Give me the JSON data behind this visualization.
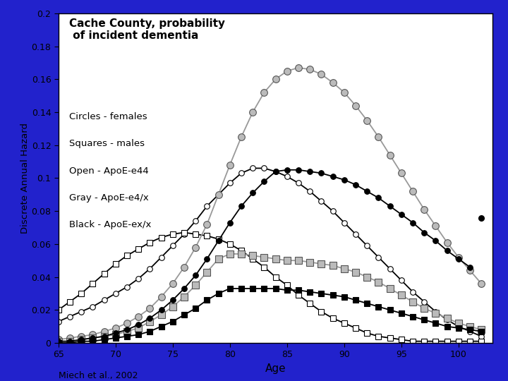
{
  "title_line1": "Cache County, probability",
  "title_line2": " of incident dementia",
  "legend_lines": [
    "Circles - females",
    "Squares - males",
    "Open - ApoE-e44",
    "Gray - ApoE-e4/x",
    "Black - ApoE-ex/x"
  ],
  "xlabel": "Age",
  "ylabel": "Discrete Annual Hazard",
  "citation": "Miech et al., 2002",
  "xlim": [
    65,
    103
  ],
  "ylim": [
    0.0,
    0.2
  ],
  "yticks": [
    0.0,
    0.02,
    0.04,
    0.06,
    0.08,
    0.1,
    0.12,
    0.14,
    0.16,
    0.18,
    0.2
  ],
  "xticks": [
    65,
    70,
    75,
    80,
    85,
    90,
    95,
    100
  ],
  "background_color": "#ffffff",
  "border_color": "#2222cc",
  "age_start": 65,
  "age_end": 103,
  "gray_color": "#999999",
  "light_gray_fill": "#bbbbbb",
  "open_circle_female": [
    0.013,
    0.016,
    0.019,
    0.022,
    0.026,
    0.03,
    0.034,
    0.039,
    0.045,
    0.052,
    0.059,
    0.066,
    0.074,
    0.083,
    0.09,
    0.097,
    0.103,
    0.106,
    0.106,
    0.104,
    0.101,
    0.097,
    0.092,
    0.086,
    0.08,
    0.073,
    0.066,
    0.059,
    0.052,
    0.045,
    0.038,
    0.031,
    0.025,
    0.019,
    0.014,
    0.01,
    0.007,
    0.004
  ],
  "open_square_male": [
    0.02,
    0.025,
    0.03,
    0.036,
    0.042,
    0.048,
    0.053,
    0.057,
    0.061,
    0.064,
    0.066,
    0.067,
    0.066,
    0.065,
    0.063,
    0.06,
    0.056,
    0.051,
    0.046,
    0.04,
    0.035,
    0.029,
    0.024,
    0.019,
    0.015,
    0.012,
    0.009,
    0.006,
    0.004,
    0.003,
    0.002,
    0.001,
    0.001,
    0.001,
    0.001,
    0.001,
    0.001,
    0.001
  ],
  "gray_circle_female": [
    0.002,
    0.003,
    0.004,
    0.005,
    0.007,
    0.009,
    0.012,
    0.016,
    0.021,
    0.028,
    0.036,
    0.046,
    0.058,
    0.072,
    0.09,
    0.108,
    0.125,
    0.14,
    0.152,
    0.16,
    0.165,
    0.167,
    0.166,
    0.163,
    0.158,
    0.152,
    0.144,
    0.135,
    0.125,
    0.114,
    0.103,
    0.092,
    0.081,
    0.071,
    0.061,
    0.052,
    0.044,
    0.036
  ],
  "gray_square_male": [
    0.001,
    0.001,
    0.002,
    0.003,
    0.004,
    0.005,
    0.007,
    0.009,
    0.013,
    0.017,
    0.022,
    0.028,
    0.035,
    0.043,
    0.051,
    0.054,
    0.054,
    0.053,
    0.052,
    0.051,
    0.05,
    0.05,
    0.049,
    0.048,
    0.047,
    0.045,
    0.043,
    0.04,
    0.037,
    0.033,
    0.029,
    0.025,
    0.021,
    0.018,
    0.015,
    0.012,
    0.01,
    0.008
  ],
  "black_circle_female": [
    0.001,
    0.001,
    0.002,
    0.003,
    0.004,
    0.006,
    0.008,
    0.011,
    0.015,
    0.02,
    0.026,
    0.033,
    0.041,
    0.051,
    0.062,
    0.073,
    0.083,
    0.091,
    0.098,
    0.104,
    0.105,
    0.105,
    0.104,
    0.103,
    0.101,
    0.099,
    0.096,
    0.092,
    0.088,
    0.083,
    0.078,
    0.073,
    0.067,
    0.062,
    0.056,
    0.051,
    0.046,
    0.076
  ],
  "black_square_male": [
    0.0,
    0.0,
    0.001,
    0.001,
    0.002,
    0.003,
    0.004,
    0.005,
    0.007,
    0.01,
    0.013,
    0.017,
    0.021,
    0.026,
    0.03,
    0.033,
    0.033,
    0.033,
    0.033,
    0.033,
    0.032,
    0.032,
    0.031,
    0.03,
    0.029,
    0.028,
    0.026,
    0.024,
    0.022,
    0.02,
    0.018,
    0.016,
    0.014,
    0.012,
    0.01,
    0.009,
    0.008,
    0.007
  ]
}
